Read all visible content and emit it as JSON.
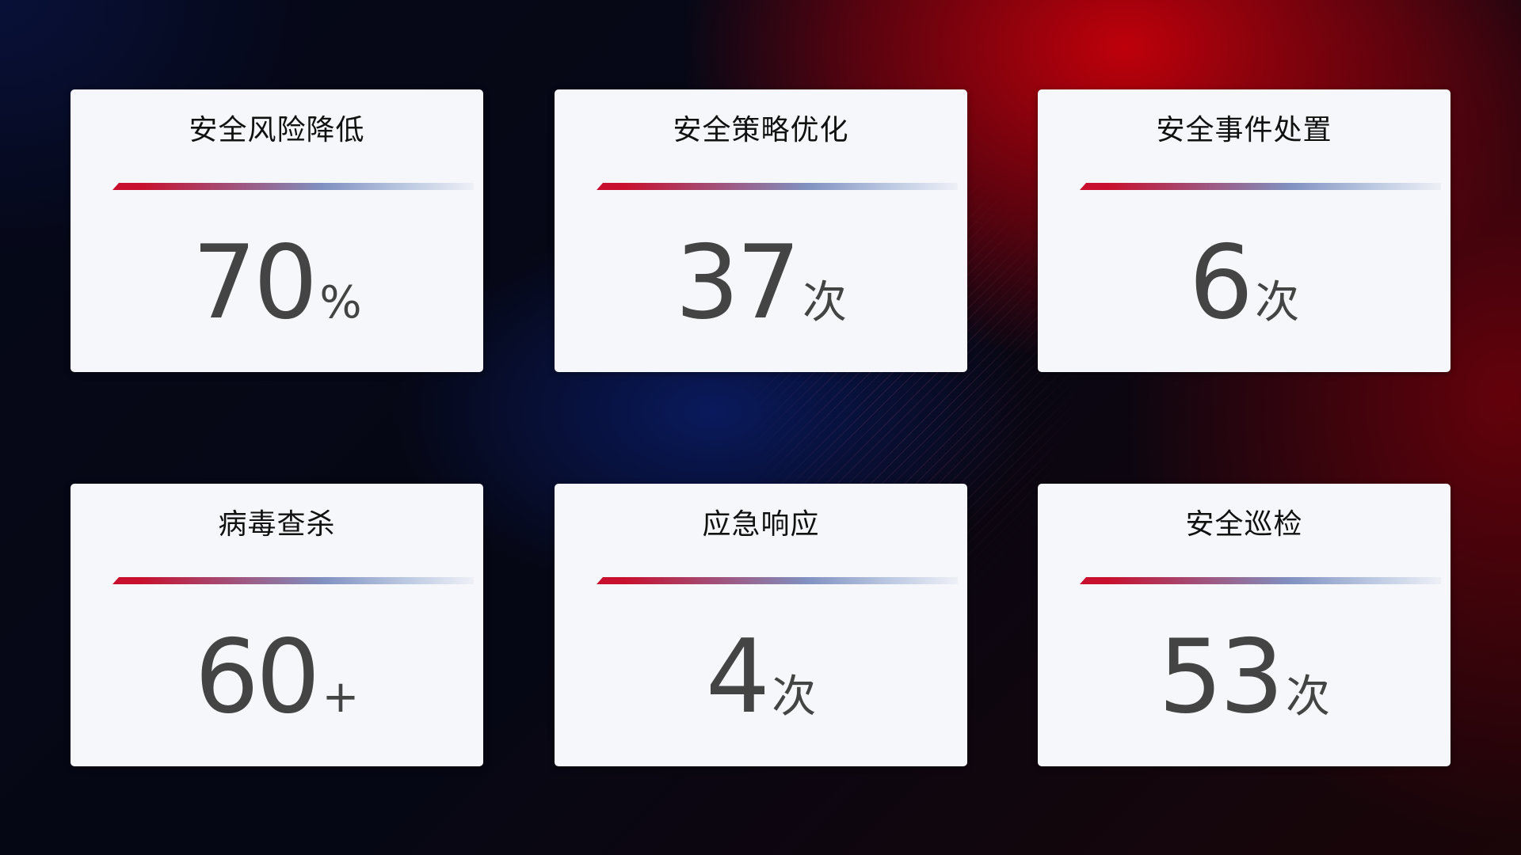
{
  "cards": [
    {
      "title": "安全风险降低",
      "value": "70",
      "unit": "%"
    },
    {
      "title": "安全策略优化",
      "value": "37",
      "unit": "次"
    },
    {
      "title": "安全事件处置",
      "value": "6",
      "unit": "次"
    },
    {
      "title": "病毒查杀",
      "value": "60",
      "unit": "+"
    },
    {
      "title": "应急响应",
      "value": "4",
      "unit": "次"
    },
    {
      "title": "安全巡检",
      "value": "53",
      "unit": "次"
    }
  ],
  "colors": {
    "accent_red": "#c8102e",
    "accent_blue": "#8090c0",
    "card_bg": "#f6f7fb",
    "value_text": "#444444"
  }
}
